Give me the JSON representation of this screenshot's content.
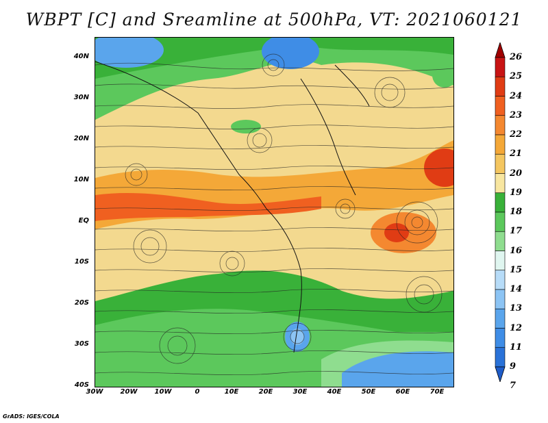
{
  "title": "WBPT [C] and Sreamline at 500hPa, VT: 2021060121",
  "footer": "GrADS: IGES/COLA",
  "latitude_labels": [
    "40N",
    "30N",
    "20N",
    "10N",
    "EQ",
    "10S",
    "20S",
    "30S",
    "40S"
  ],
  "longitude_labels": [
    "30W",
    "20W",
    "10W",
    "0",
    "10E",
    "20E",
    "30E",
    "40E",
    "50E",
    "60E",
    "70E"
  ],
  "colorbar": {
    "levels": [
      "26",
      "25",
      "24",
      "23",
      "22",
      "21",
      "20",
      "19",
      "18",
      "17",
      "16",
      "15",
      "14",
      "13",
      "12",
      "11",
      "9",
      "7"
    ],
    "colors": [
      "#a00000",
      "#c81414",
      "#e03c14",
      "#f06020",
      "#f48830",
      "#f4a838",
      "#f4c660",
      "#f8e6a0",
      "#39b139",
      "#5cc85c",
      "#8fdd8f",
      "#e0f6f0",
      "#b7dcf8",
      "#8cc4f4",
      "#5aa5ec",
      "#3f8de6",
      "#2a72d8",
      "#1e5cc8"
    ]
  },
  "chart_data": {
    "type": "heatmap",
    "variable": "Wet-bulb potential temperature with streamlines",
    "level": "500hPa",
    "units": "C",
    "valid_time": "2021060121",
    "lon_range": [
      -30,
      75
    ],
    "lat_range": [
      -40,
      45
    ]
  }
}
